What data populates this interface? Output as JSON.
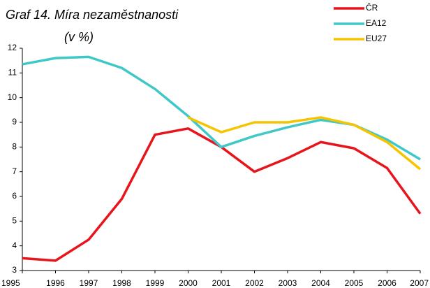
{
  "chart_data": {
    "type": "line",
    "title": "Graf 14. Míra nezaměstnanosti",
    "subtitle": "(v %)",
    "categories": [
      "1995",
      "1996",
      "1997",
      "1998",
      "1999",
      "2000",
      "2001",
      "2002",
      "2003",
      "2004",
      "2005",
      "2006",
      "2007"
    ],
    "series": [
      {
        "name": "ČR",
        "color": "#e8141c",
        "values": [
          3.5,
          3.4,
          4.25,
          5.9,
          8.5,
          8.75,
          8.0,
          7.0,
          7.55,
          8.2,
          7.95,
          7.15,
          5.3
        ]
      },
      {
        "name": "EA12",
        "color": "#40c8c8",
        "values": [
          11.35,
          11.6,
          11.65,
          11.2,
          10.35,
          9.25,
          8.0,
          8.45,
          8.8,
          9.1,
          8.9,
          8.3,
          7.5
        ]
      },
      {
        "name": "EU27",
        "color": "#f5c400",
        "values": [
          null,
          null,
          null,
          null,
          null,
          9.2,
          8.6,
          9.0,
          9.0,
          9.2,
          8.9,
          8.2,
          7.1
        ]
      }
    ],
    "ylim": [
      3,
      12
    ],
    "yticks": [
      3,
      4,
      5,
      6,
      7,
      8,
      9,
      10,
      11,
      12
    ],
    "grid": false,
    "legend": "top-right"
  }
}
